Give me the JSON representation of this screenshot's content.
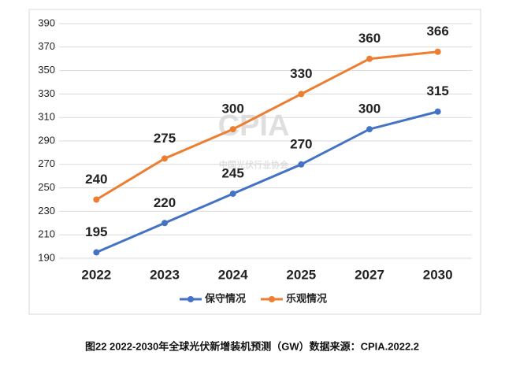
{
  "chart_data": {
    "type": "line",
    "caption": "图22 2022-2030年全球光伏新增装机预测（GW）数据来源：CPIA.2022.2",
    "watermark": {
      "text": "CPIA",
      "subtitle": "中国光伏行业协会"
    },
    "categories": [
      "2022",
      "2023",
      "2024",
      "2025",
      "2027",
      "2030"
    ],
    "series": [
      {
        "name": "保守情况",
        "color": "#4472c4",
        "values": [
          195,
          220,
          245,
          270,
          300,
          315
        ]
      },
      {
        "name": "乐观情况",
        "color": "#ed7d31",
        "values": [
          240,
          275,
          300,
          330,
          360,
          366
        ]
      }
    ],
    "ylim": [
      190,
      390
    ],
    "yticks": [
      190,
      210,
      230,
      250,
      270,
      290,
      310,
      330,
      350,
      370,
      390
    ],
    "grid": true,
    "legend": "bottom"
  }
}
